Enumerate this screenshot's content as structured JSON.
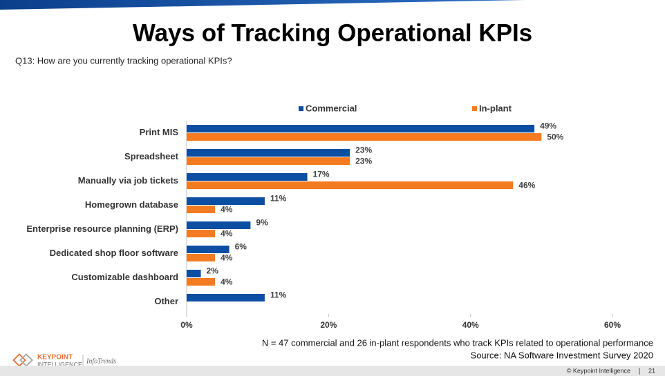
{
  "slide": {
    "question": "Q13: How are you currently tracking operational KPIs?",
    "notes": [
      "N = 47 commercial and 26 in-plant respondents who track KPIs related to operational performance",
      "Source: NA Software Investment Survey 2020"
    ],
    "logo": [
      "KEYPOINT",
      "INTELLIGENCE",
      "InfoTrends"
    ],
    "footer": "© Keypoint Intelligence",
    "page": "21"
  },
  "chart_data": {
    "type": "hbar",
    "title": "Ways of Tracking Operational KPIs",
    "categories": [
      "Print MIS",
      "Spreadsheet",
      "Manually via job tickets",
      "Homegrown database",
      "Enterprise resource planning (ERP)",
      "Dedicated shop floor software",
      "Customizable dashboard",
      "Other"
    ],
    "series": [
      {
        "name": "Commercial",
        "color": "#0b4ea2",
        "values": [
          49,
          23,
          17,
          11,
          9,
          6,
          2,
          11
        ],
        "value_labels": [
          "49%",
          "23%",
          "17%",
          "11%",
          "9%",
          "6%",
          "2%",
          "11%"
        ]
      },
      {
        "name": "In-plant",
        "color": "#f47b20",
        "values": [
          50,
          23,
          46,
          4,
          4,
          4,
          4,
          null
        ],
        "value_labels": [
          "50%",
          "23%",
          "46%",
          "4%",
          "4%",
          "4%",
          "4%",
          null
        ]
      }
    ],
    "xlim": [
      0,
      60
    ],
    "xticks": [
      {
        "value": 0,
        "label": "0%"
      },
      {
        "value": 20,
        "label": "20%"
      },
      {
        "value": 40,
        "label": "40%"
      },
      {
        "value": 60,
        "label": "60%"
      }
    ],
    "legend": "top"
  }
}
